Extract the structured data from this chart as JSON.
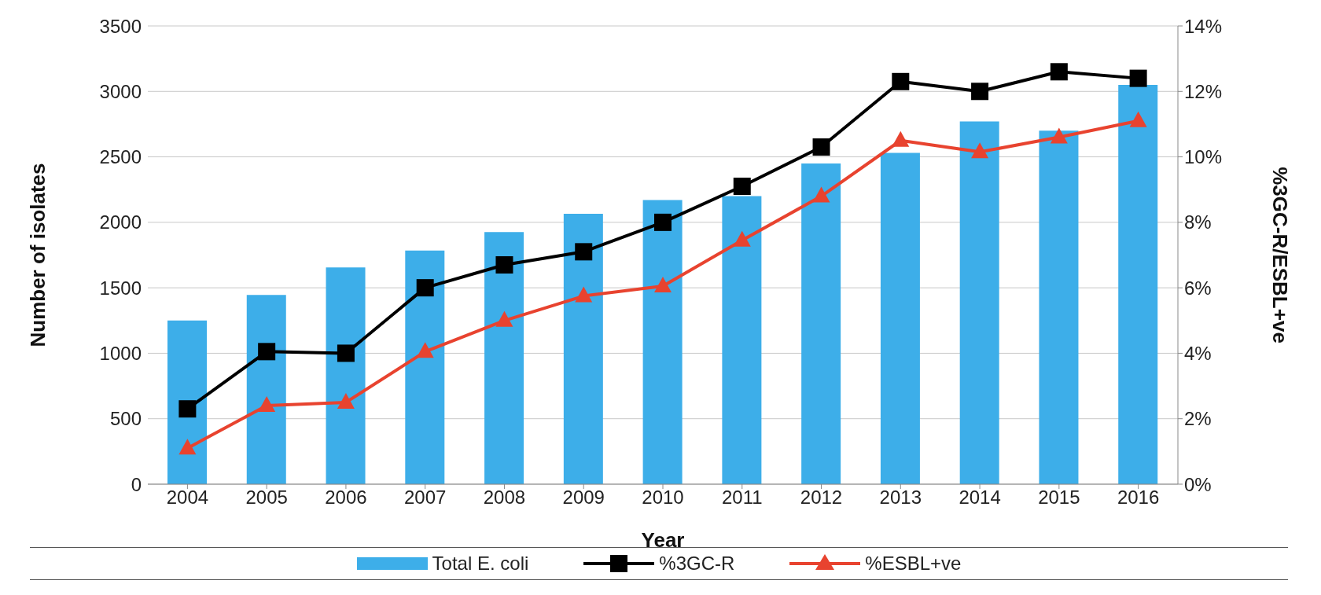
{
  "chart_data": {
    "type": "bar",
    "xlabel": "Year",
    "ylabel": "Number of isolates",
    "y2label": "%3GC-R/ESBL+ve",
    "categories": [
      "2004",
      "2005",
      "2006",
      "2007",
      "2008",
      "2009",
      "2010",
      "2011",
      "2012",
      "2013",
      "2014",
      "2015",
      "2016"
    ],
    "series": [
      {
        "name": "Total E. coli",
        "color": "#3daee9",
        "values": [
          1250,
          1445,
          1655,
          1785,
          1925,
          2065,
          2170,
          2200,
          2450,
          2530,
          2770,
          2700,
          3050
        ]
      },
      {
        "name": "%3GC-R",
        "type": "line",
        "axis": "y2",
        "marker": "square",
        "color": "#000000",
        "values": [
          2.3,
          4.05,
          4.0,
          6.0,
          6.7,
          7.1,
          8.0,
          9.1,
          10.3,
          12.3,
          12.0,
          12.6,
          12.4
        ]
      },
      {
        "name": "%ESBL+ve",
        "type": "line",
        "axis": "y2",
        "marker": "triangle",
        "color": "#e8432f",
        "values": [
          1.1,
          2.4,
          2.5,
          4.05,
          5.0,
          5.75,
          6.05,
          7.45,
          8.8,
          10.5,
          10.15,
          10.6,
          11.1
        ]
      }
    ],
    "ylim": [
      0,
      3500
    ],
    "yticks": [
      0,
      500,
      1000,
      1500,
      2000,
      2500,
      3000,
      3500
    ],
    "y2lim": [
      0,
      14
    ],
    "y2ticks": [
      {
        "value": 0,
        "label": "0%"
      },
      {
        "value": 2,
        "label": "2%"
      },
      {
        "value": 4,
        "label": "4%"
      },
      {
        "value": 6,
        "label": "6%"
      },
      {
        "value": 8,
        "label": "8%"
      },
      {
        "value": 10,
        "label": "10%"
      },
      {
        "value": 12,
        "label": "12%"
      },
      {
        "value": 14,
        "label": "14%"
      }
    ],
    "grid": "y",
    "legend": "bottom"
  }
}
